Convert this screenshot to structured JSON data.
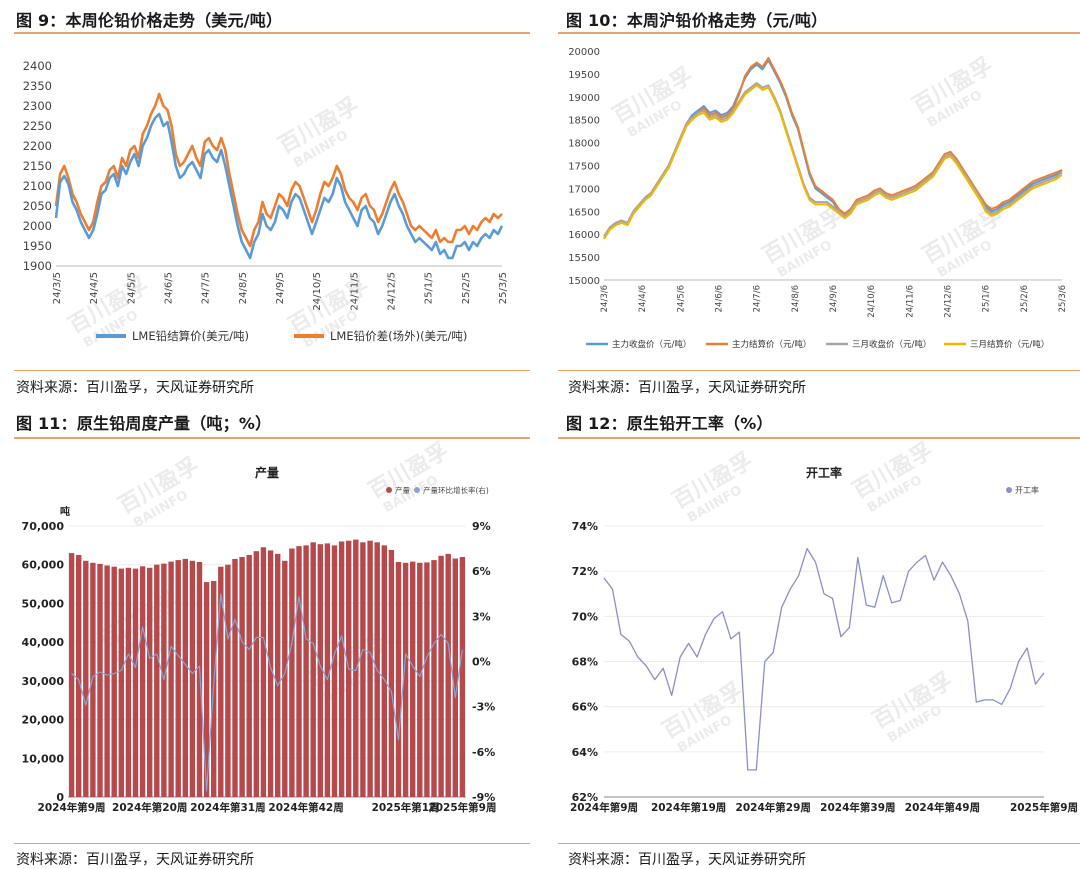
{
  "fig9": {
    "title": "图 9：本周伦铅价格走势（美元/吨）",
    "source": "资料来源：百川盈孚，天风证券研究所"
  },
  "fig10": {
    "title": "图 10：本周沪铅价格走势（元/吨）",
    "source": "资料来源：百川盈孚，天风证券研究所"
  },
  "fig11": {
    "title": "图 11：原生铅周度产量（吨；%）",
    "source": "资料来源：百川盈孚，天风证券研究所"
  },
  "fig12": {
    "title": "图 12：原生铅开工率（%）",
    "source": "资料来源：百川盈孚，天风证券研究所"
  },
  "watermark": {
    "cn": "百川盈孚",
    "en": "BAIINFO"
  },
  "colors": {
    "accent": "#e8a26b",
    "blue": "#5b9bd5",
    "orange": "#ed7d31",
    "gray": "#a5a5a5",
    "gold": "#f2b800",
    "bar": "#b5494b",
    "purple": "#8b8fc7"
  },
  "chart_data": [
    {
      "id": "fig9",
      "type": "line",
      "ylim": [
        1900,
        2400
      ],
      "yticks": [
        1900,
        1950,
        2000,
        2050,
        2100,
        2150,
        2200,
        2250,
        2300,
        2350,
        2400
      ],
      "xticks": [
        "24/3/5",
        "24/4/5",
        "24/5/5",
        "24/6/5",
        "24/7/5",
        "24/8/5",
        "24/9/5",
        "24/10/5",
        "24/11/5",
        "24/12/5",
        "25/1/5",
        "25/2/5",
        "25/3/5"
      ],
      "series": [
        {
          "name": "LME铅结算价(美元/吨)",
          "color": "#5b9bd5",
          "values": [
            2020,
            2110,
            2125,
            2105,
            2060,
            2040,
            2010,
            1990,
            1970,
            1990,
            2030,
            2080,
            2090,
            2120,
            2130,
            2100,
            2150,
            2130,
            2160,
            2180,
            2150,
            2200,
            2220,
            2250,
            2270,
            2280,
            2250,
            2260,
            2210,
            2150,
            2120,
            2130,
            2150,
            2160,
            2140,
            2120,
            2180,
            2190,
            2170,
            2160,
            2190,
            2150,
            2100,
            2050,
            2000,
            1960,
            1940,
            1920,
            1960,
            1980,
            2030,
            2000,
            1990,
            2010,
            2050,
            2040,
            2020,
            2060,
            2080,
            2070,
            2040,
            2010,
            1980,
            2010,
            2040,
            2070,
            2060,
            2080,
            2120,
            2100,
            2060,
            2040,
            2020,
            2000,
            2040,
            2050,
            2020,
            2010,
            1980,
            2000,
            2030,
            2060,
            2080,
            2050,
            2030,
            2000,
            1980,
            1960,
            1970,
            1960,
            1950,
            1940,
            1960,
            1930,
            1940,
            1920,
            1920,
            1950,
            1950,
            1960,
            1940,
            1960,
            1950,
            1970,
            1980,
            1970,
            1990,
            1980,
            2000
          ]
        },
        {
          "name": "LME铅价差(场外)(美元/吨)",
          "color": "#ed7d31",
          "values": [
            2050,
            2130,
            2150,
            2120,
            2080,
            2060,
            2030,
            2010,
            1990,
            2010,
            2060,
            2100,
            2110,
            2140,
            2150,
            2120,
            2170,
            2150,
            2190,
            2200,
            2170,
            2230,
            2250,
            2280,
            2300,
            2330,
            2300,
            2290,
            2250,
            2180,
            2150,
            2160,
            2180,
            2200,
            2170,
            2150,
            2210,
            2220,
            2200,
            2190,
            2220,
            2190,
            2130,
            2080,
            2030,
            1990,
            1970,
            1950,
            1990,
            2010,
            2060,
            2030,
            2020,
            2050,
            2080,
            2070,
            2050,
            2090,
            2110,
            2100,
            2070,
            2040,
            2010,
            2040,
            2080,
            2110,
            2100,
            2120,
            2150,
            2130,
            2090,
            2070,
            2060,
            2040,
            2070,
            2080,
            2050,
            2040,
            2010,
            2030,
            2060,
            2090,
            2110,
            2080,
            2060,
            2030,
            2000,
            1990,
            2000,
            1990,
            1980,
            1970,
            1990,
            1960,
            1970,
            1960,
            1960,
            1990,
            1990,
            2000,
            1980,
            2000,
            1990,
            2010,
            2020,
            2010,
            2030,
            2020,
            2030
          ]
        }
      ]
    },
    {
      "id": "fig10",
      "type": "line",
      "ylim": [
        15000,
        20000
      ],
      "yticks": [
        15000,
        15500,
        16000,
        16500,
        17000,
        17500,
        18000,
        18500,
        19000,
        19500,
        20000
      ],
      "xticks": [
        "24/3/6",
        "24/4/6",
        "24/5/6",
        "24/6/6",
        "24/7/6",
        "24/8/6",
        "24/9/6",
        "24/10/6",
        "24/11/6",
        "24/12/6",
        "25/1/6",
        "25/2/6",
        "25/3/6"
      ],
      "series": [
        {
          "name": "主力收盘价（元/吨）",
          "color": "#5b9bd5",
          "values": [
            15950,
            16150,
            16250,
            16300,
            16250,
            16500,
            16650,
            16800,
            16900,
            17100,
            17300,
            17500,
            17800,
            18100,
            18400,
            18600,
            18700,
            18800,
            18650,
            18700,
            18600,
            18650,
            18800,
            19100,
            19400,
            19600,
            19700,
            19600,
            19800,
            19550,
            19300,
            19000,
            18600,
            18300,
            17800,
            17300,
            17000,
            16900,
            16800,
            16700,
            16500,
            16400,
            16500,
            16700,
            16750,
            16800,
            16900,
            16950,
            16850,
            16800,
            16850,
            16900,
            16950,
            17000,
            17100,
            17200,
            17300,
            17500,
            17700,
            17750,
            17600,
            17400,
            17200,
            17000,
            16800,
            16600,
            16500,
            16550,
            16650,
            16700,
            16800,
            16900,
            17000,
            17100,
            17150,
            17200,
            17250,
            17300,
            17400
          ]
        },
        {
          "name": "主力结算价（元/吨）",
          "color": "#ed7d31",
          "values": [
            15900,
            16100,
            16200,
            16250,
            16200,
            16450,
            16600,
            16750,
            16850,
            17050,
            17250,
            17450,
            17750,
            18050,
            18350,
            18550,
            18650,
            18750,
            18600,
            18650,
            18550,
            18600,
            18750,
            19050,
            19450,
            19650,
            19750,
            19650,
            19850,
            19600,
            19350,
            19050,
            18650,
            18350,
            17850,
            17350,
            17050,
            16950,
            16850,
            16750,
            16550,
            16450,
            16550,
            16750,
            16800,
            16850,
            16950,
            17000,
            16900,
            16850,
            16900,
            16950,
            17000,
            17050,
            17150,
            17250,
            17350,
            17550,
            17750,
            17800,
            17650,
            17450,
            17250,
            17050,
            16850,
            16650,
            16550,
            16600,
            16700,
            16750,
            16850,
            16950,
            17050,
            17150,
            17200,
            17250,
            17300,
            17350,
            17400
          ]
        },
        {
          "name": "三月收盘价（元/吨）",
          "color": "#a5a5a5",
          "values": [
            15950,
            16150,
            16250,
            16300,
            16250,
            16500,
            16650,
            16800,
            16900,
            17100,
            17300,
            17500,
            17800,
            18100,
            18400,
            18550,
            18650,
            18700,
            18550,
            18600,
            18500,
            18550,
            18700,
            18900,
            19100,
            19200,
            19300,
            19200,
            19250,
            19000,
            18700,
            18300,
            17900,
            17500,
            17100,
            16800,
            16700,
            16700,
            16700,
            16600,
            16500,
            16400,
            16500,
            16700,
            16750,
            16800,
            16900,
            16950,
            16850,
            16800,
            16850,
            16900,
            16950,
            17000,
            17100,
            17200,
            17300,
            17500,
            17700,
            17750,
            17600,
            17400,
            17200,
            17000,
            16800,
            16550,
            16450,
            16500,
            16600,
            16650,
            16750,
            16850,
            16950,
            17050,
            17100,
            17150,
            17200,
            17250,
            17350
          ]
        },
        {
          "name": "三月结算价（元/吨）",
          "color": "#f2b800",
          "values": [
            15900,
            16100,
            16200,
            16250,
            16200,
            16450,
            16600,
            16750,
            16850,
            17050,
            17250,
            17450,
            17750,
            18050,
            18350,
            18500,
            18600,
            18650,
            18500,
            18550,
            18450,
            18500,
            18650,
            18850,
            19050,
            19150,
            19250,
            19150,
            19200,
            18950,
            18650,
            18250,
            17850,
            17450,
            17050,
            16750,
            16650,
            16650,
            16650,
            16550,
            16450,
            16350,
            16450,
            16650,
            16700,
            16750,
            16850,
            16900,
            16800,
            16750,
            16800,
            16850,
            16900,
            16950,
            17050,
            17150,
            17250,
            17450,
            17650,
            17700,
            17550,
            17350,
            17150,
            16950,
            16750,
            16500,
            16400,
            16450,
            16550,
            16600,
            16700,
            16800,
            16900,
            17000,
            17050,
            17100,
            17150,
            17200,
            17300
          ]
        }
      ]
    },
    {
      "id": "fig11",
      "type": "bar",
      "title": "产量",
      "yunit": "吨",
      "ylim": [
        0,
        70000
      ],
      "yticks": [
        "0",
        "10,000",
        "20,000",
        "30,000",
        "40,000",
        "50,000",
        "60,000",
        "70,000"
      ],
      "y2lim": [
        -9,
        9
      ],
      "y2ticks": [
        "-9%",
        "-6%",
        "-3%",
        "0%",
        "3%",
        "6%",
        "9%"
      ],
      "xticks": [
        "2024年第9周",
        "2024年第20周",
        "2024年第31周",
        "2024年第42周",
        "2025年第1周",
        "2025年第9周"
      ],
      "series": [
        {
          "name": "产量",
          "color": "#b5494b",
          "values": [
            63000,
            62500,
            61000,
            60500,
            60200,
            59800,
            59500,
            59000,
            59200,
            59000,
            59600,
            59200,
            60000,
            60300,
            60800,
            61200,
            61500,
            61000,
            60700,
            55500,
            55800,
            59500,
            60000,
            61500,
            62000,
            62500,
            63500,
            64500,
            63700,
            62800,
            61000,
            64200,
            64800,
            65000,
            65800,
            65300,
            65500,
            65000,
            66000,
            66200,
            66500,
            65800,
            66200,
            65800,
            65000,
            63800,
            60700,
            60500,
            60800,
            60500,
            60600,
            61200,
            62300,
            62800,
            61600,
            62000
          ]
        },
        {
          "name": "产量环比增长率(右)",
          "color": "#8ba3cf",
          "values": [
            -0.8,
            -1.2,
            -2.9,
            -1.0,
            -0.7,
            -0.9,
            -0.8,
            -0.6,
            0.5,
            -0.4,
            2.3,
            0.2,
            0.5,
            -1.2,
            1.0,
            0.4,
            -0.2,
            -0.8,
            -0.3,
            -8.6,
            -1.5,
            4.5,
            1.5,
            2.8,
            1.3,
            0.8,
            1.6,
            1.6,
            -0.4,
            -1.6,
            -0.8,
            1.2,
            4.3,
            1.5,
            1.2,
            -0.3,
            -1.2,
            0.5,
            1.7,
            -0.5,
            -0.6,
            0.8,
            0.6,
            -0.6,
            -1.2,
            -2.0,
            -5.2,
            0.5,
            -0.3,
            -1.0,
            0.3,
            1.2,
            1.8,
            1.2,
            -2.4,
            0.8
          ]
        }
      ]
    },
    {
      "id": "fig12",
      "type": "line",
      "title": "开工率",
      "ylim": [
        62,
        74
      ],
      "yticks": [
        "62%",
        "64%",
        "66%",
        "68%",
        "70%",
        "72%",
        "74%"
      ],
      "xticks": [
        "2024年第9周",
        "2024年第19周",
        "2024年第29周",
        "2024年第39周",
        "2024年第49周",
        "2025年第9周"
      ],
      "series": [
        {
          "name": "开工率",
          "color": "#8b8fc7",
          "values": [
            71.7,
            71.2,
            69.2,
            68.9,
            68.2,
            67.8,
            67.2,
            67.7,
            66.5,
            68.2,
            68.8,
            68.2,
            69.2,
            69.9,
            70.2,
            69.0,
            69.3,
            63.2,
            63.2,
            68.0,
            68.4,
            70.4,
            71.2,
            71.8,
            73.0,
            72.4,
            71.0,
            70.8,
            69.1,
            69.5,
            72.6,
            70.5,
            70.4,
            71.8,
            70.6,
            70.7,
            72.0,
            72.4,
            72.7,
            71.6,
            72.4,
            71.8,
            71.0,
            69.8,
            66.2,
            66.3,
            66.3,
            66.1,
            66.8,
            68.0,
            68.6,
            67.0,
            67.5
          ]
        }
      ]
    }
  ]
}
